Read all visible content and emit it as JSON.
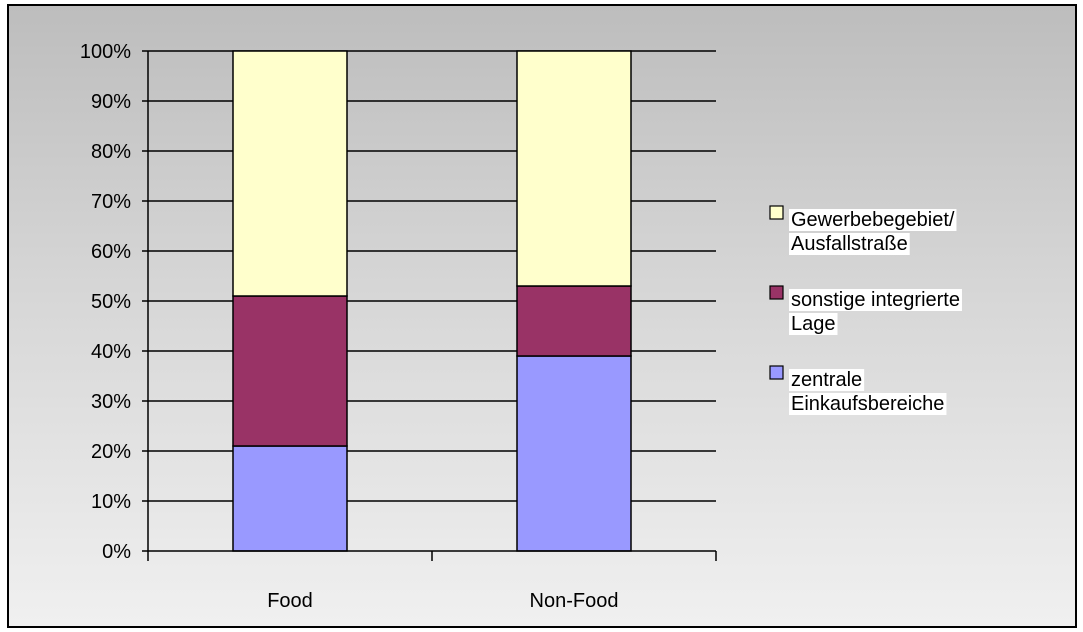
{
  "chart_data": {
    "type": "bar",
    "stacked": true,
    "normalized": true,
    "categories": [
      "Food",
      "Non-Food"
    ],
    "series": [
      {
        "name": "zentrale Einkaufsbereiche",
        "color": "#9999ff",
        "values": [
          21,
          39
        ]
      },
      {
        "name": "sonstige integrierte Lage",
        "color": "#993366",
        "values": [
          30,
          14
        ]
      },
      {
        "name": "Gewerbebegebiet/ Ausfallstraße",
        "color": "#ffffcc",
        "values": [
          49,
          47
        ]
      }
    ],
    "y_ticks": [
      "0%",
      "10%",
      "20%",
      "30%",
      "40%",
      "50%",
      "60%",
      "70%",
      "80%",
      "90%",
      "100%"
    ],
    "ylim": [
      0,
      100
    ],
    "grid": true,
    "legend_position": "right",
    "legend": [
      {
        "lines": [
          "Gewerbebegebiet/",
          "Ausfallstraße"
        ],
        "color": "#ffffcc"
      },
      {
        "lines": [
          "sonstige integrierte",
          "Lage"
        ],
        "color": "#993366"
      },
      {
        "lines": [
          "zentrale",
          "Einkaufsbereiche"
        ],
        "color": "#9999ff"
      }
    ]
  }
}
